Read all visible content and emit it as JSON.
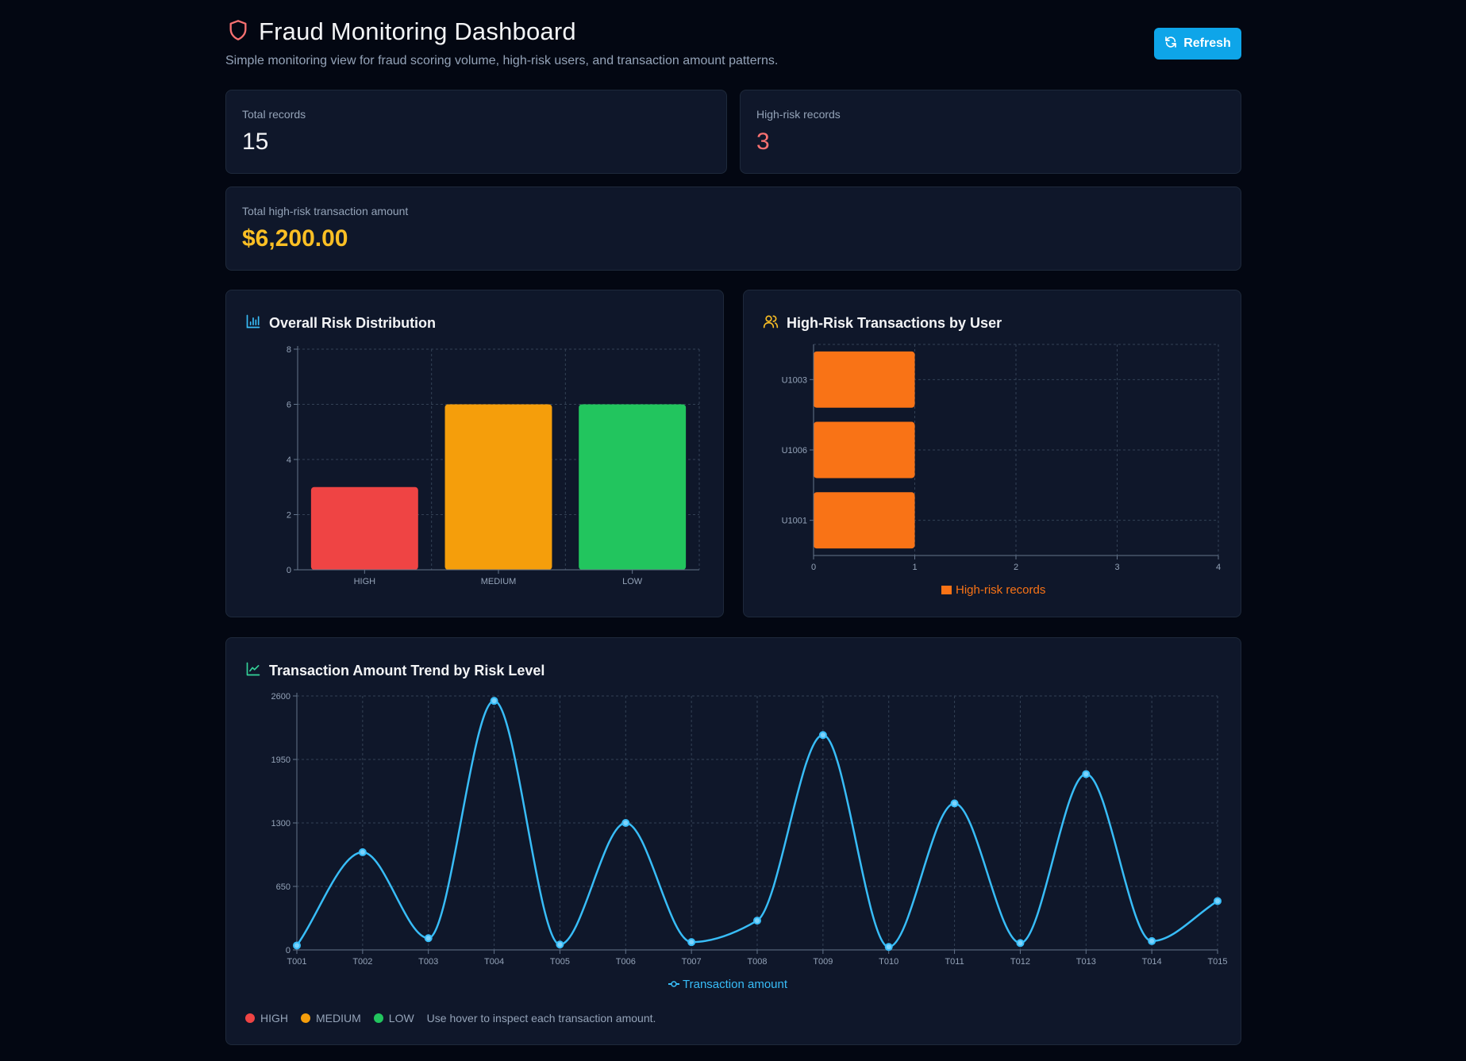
{
  "header": {
    "title": "Fraud Monitoring Dashboard",
    "subtitle": "Simple monitoring view for fraud scoring volume, high-risk users, and transaction amount patterns.",
    "refresh_label": "Refresh"
  },
  "stats": {
    "total_records_label": "Total records",
    "total_records_value": "15",
    "high_risk_label": "High-risk records",
    "high_risk_value": "3",
    "amount_label": "Total high-risk transaction amount",
    "amount_value": "$6,200.00"
  },
  "colors": {
    "high": "#ef4444",
    "medium": "#f59e0b",
    "low": "#22c55e",
    "accent": "#0ea5e9",
    "line": "#38bdf8",
    "orange": "#f97316",
    "amount": "#fbbf24"
  },
  "panels": {
    "risk_title": "Overall Risk Distribution",
    "user_title": "High-Risk Transactions by User",
    "trend_title": "Transaction Amount Trend by Risk Level"
  },
  "trend_legend": {
    "high": "HIGH",
    "medium": "MEDIUM",
    "low": "LOW",
    "hint": "Use hover to inspect each transaction amount."
  },
  "chart_data": [
    {
      "type": "bar",
      "title": "Overall Risk Distribution",
      "categories": [
        "HIGH",
        "MEDIUM",
        "LOW"
      ],
      "values": [
        3,
        6,
        6
      ],
      "ylim": [
        0,
        8
      ],
      "yticks": [
        0,
        2,
        4,
        6,
        8
      ],
      "grid": true
    },
    {
      "type": "bar",
      "orientation": "horizontal",
      "title": "High-Risk Transactions by User",
      "categories": [
        "U1003",
        "U1006",
        "U1001"
      ],
      "values": [
        1,
        1,
        1
      ],
      "xlim": [
        0,
        4
      ],
      "xticks": [
        0,
        1,
        2,
        3,
        4
      ],
      "legend": "High-risk records",
      "grid": true
    },
    {
      "type": "line",
      "title": "Transaction Amount Trend by Risk Level",
      "categories": [
        "T001",
        "T002",
        "T003",
        "T004",
        "T005",
        "T006",
        "T007",
        "T008",
        "T009",
        "T010",
        "T011",
        "T012",
        "T013",
        "T014",
        "T015"
      ],
      "series": [
        {
          "name": "Transaction amount",
          "values": [
            45,
            1000,
            120,
            2550,
            55,
            1300,
            80,
            300,
            2200,
            30,
            1500,
            70,
            1800,
            90,
            500
          ]
        }
      ],
      "ylim": [
        0,
        2600
      ],
      "yticks": [
        0,
        650,
        1300,
        1950,
        2600
      ],
      "grid": true
    }
  ]
}
